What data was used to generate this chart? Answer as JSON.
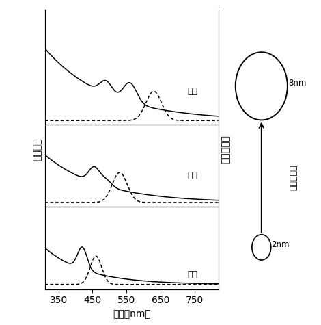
{
  "xlabel": "波长（nm）",
  "ylabel": "吸收强度",
  "ylabel2": "激发光强度",
  "size_label": "量子点尺寸",
  "label_red": "红色",
  "label_green": "绿色",
  "label_blue": "蓝色",
  "size_big": "8nm",
  "size_small": "2nm",
  "xlim": [
    310,
    820
  ],
  "xticks": [
    350,
    450,
    550,
    650,
    750
  ]
}
